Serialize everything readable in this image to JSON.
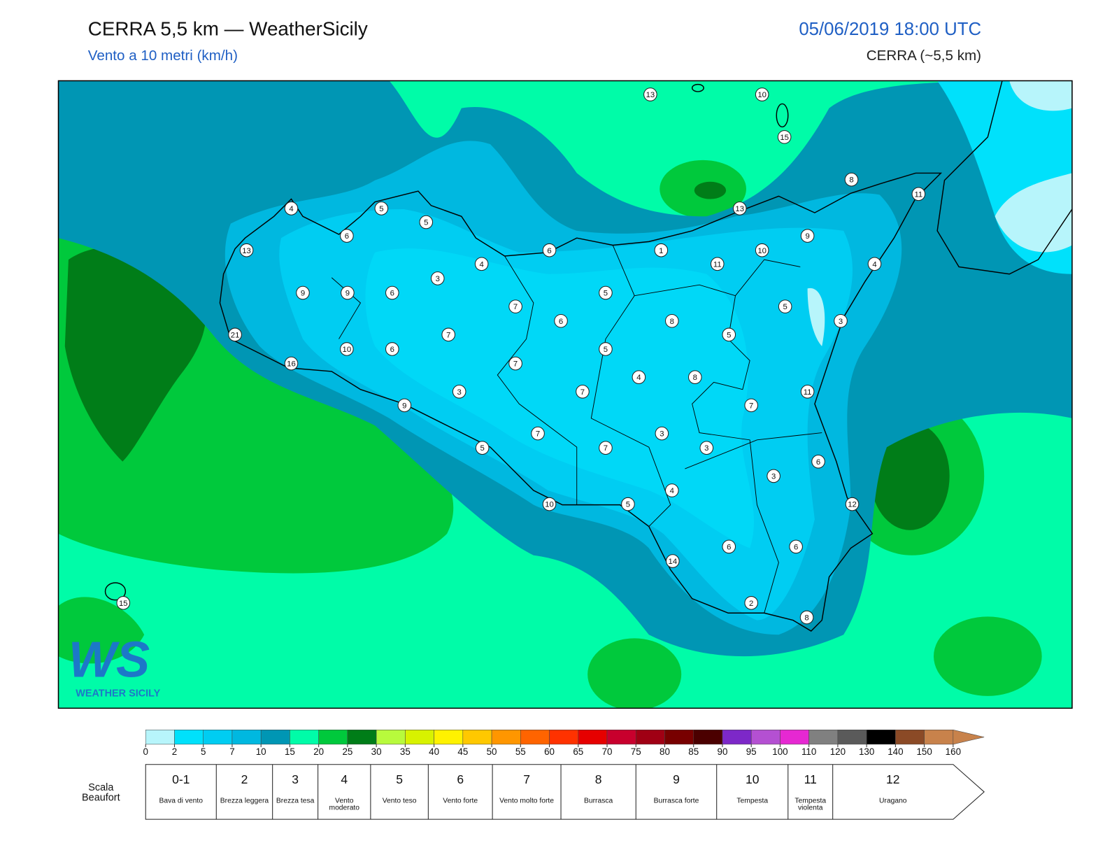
{
  "header": {
    "title": "CERRA 5,5 km — WeatherSicily",
    "subtitle": "Vento a 10 metri (km/h)",
    "datetime": "05/06/2019 18:00 UTC",
    "model": "CERRA (~5,5 km)"
  },
  "map": {
    "wind_labels": [
      13,
      10,
      15,
      8,
      11,
      13,
      4,
      5,
      5,
      6,
      9,
      13,
      6,
      1,
      10,
      11,
      4,
      4,
      3,
      9,
      9,
      6,
      5,
      7,
      5,
      6,
      8,
      3,
      5,
      21,
      7,
      10,
      6,
      5,
      7,
      16,
      4,
      8,
      3,
      7,
      11,
      9,
      7,
      7,
      3,
      5,
      7,
      3,
      6,
      3,
      4,
      12,
      10,
      5,
      6,
      6,
      14,
      15,
      2,
      8
    ]
  },
  "logo": {
    "text": "WS",
    "caption": "WEATHER SICILY"
  },
  "colorbar": {
    "ticks": [
      0,
      2,
      5,
      7,
      10,
      15,
      20,
      25,
      30,
      35,
      40,
      45,
      50,
      55,
      60,
      65,
      70,
      75,
      80,
      85,
      90,
      95,
      100,
      110,
      120,
      130,
      140,
      150,
      160
    ],
    "colors": [
      "#b7f5fb",
      "#00e1fb",
      "#00cdf2",
      "#00b8e0",
      "#0096b4",
      "#00fca8",
      "#00c93c",
      "#007d18",
      "#b8fa3c",
      "#d8f200",
      "#fff200",
      "#ffc800",
      "#ff9600",
      "#ff6400",
      "#ff3200",
      "#e60000",
      "#c8002d",
      "#a00014",
      "#780000",
      "#4b0000",
      "#7d28c8",
      "#b450d2",
      "#e628d2",
      "#808080",
      "#5a5a5a",
      "#000000",
      "#8b4a26",
      "#c8824b"
    ]
  },
  "beaufort": {
    "title": "Scala Beaufort",
    "scale": [
      {
        "force": "0-1",
        "description": "Bava di vento"
      },
      {
        "force": "2",
        "description": "Brezza leggera"
      },
      {
        "force": "3",
        "description": "Brezza tesa"
      },
      {
        "force": "4",
        "description": "Vento moderato"
      },
      {
        "force": "5",
        "description": "Vento teso"
      },
      {
        "force": "6",
        "description": "Vento forte"
      },
      {
        "force": "7",
        "description": "Vento molto forte"
      },
      {
        "force": "8",
        "description": "Burrasca"
      },
      {
        "force": "9",
        "description": "Burrasca forte"
      },
      {
        "force": "10",
        "description": "Tempesta"
      },
      {
        "force": "11",
        "description": "Tempesta violenta"
      },
      {
        "force": "12",
        "description": "Uragano"
      }
    ]
  }
}
